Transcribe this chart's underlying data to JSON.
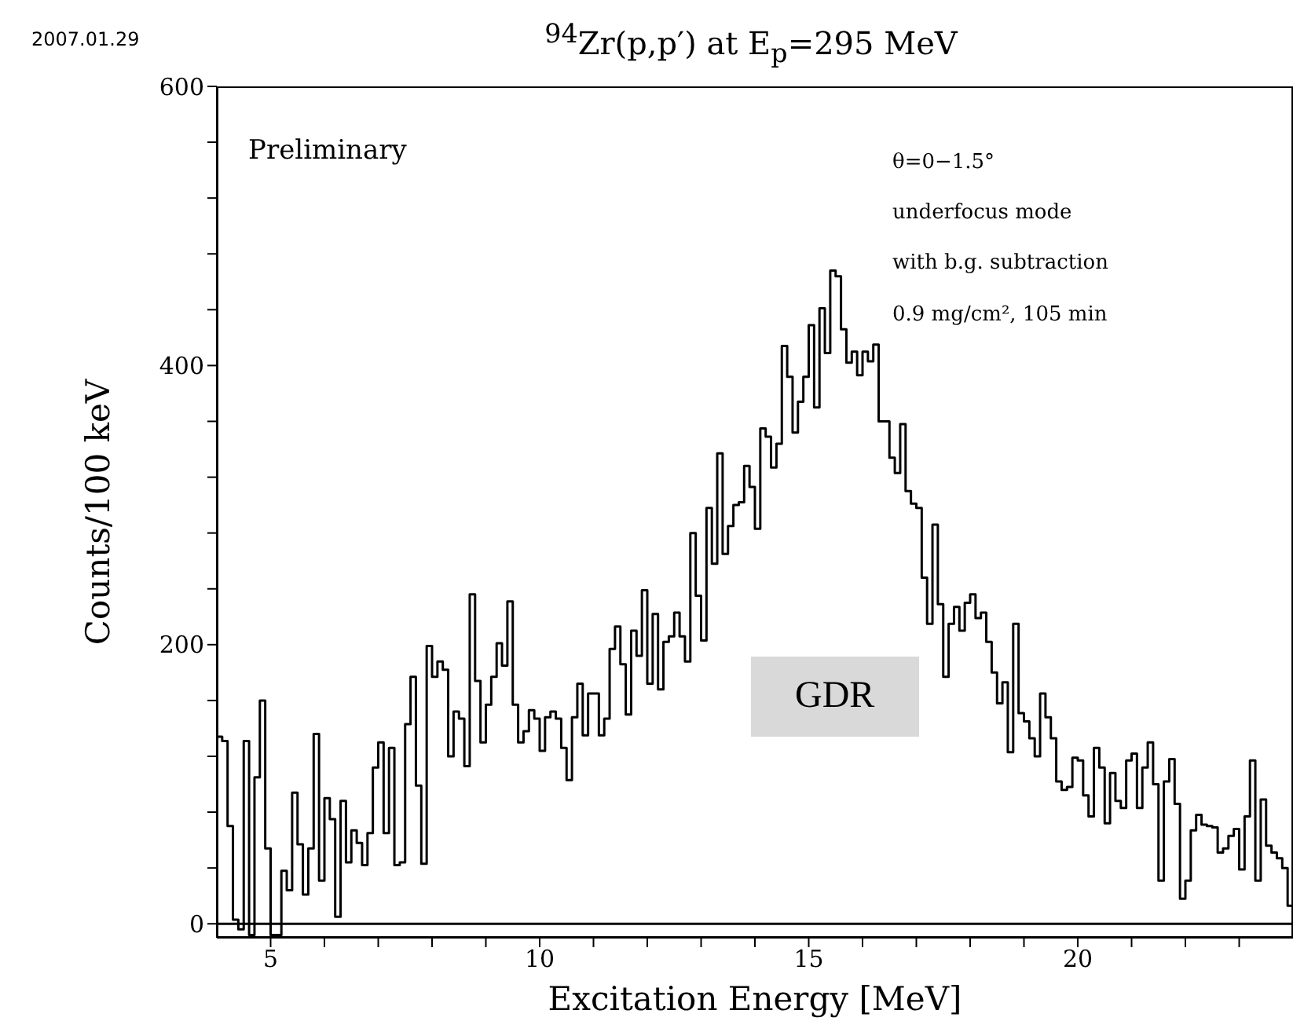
{
  "chart_data": {
    "type": "histogram",
    "title": "$^{94}$Zr(p,p′) at E$_{p}$=295 MeV",
    "xlabel": "Excitation Energy [MeV]",
    "ylabel": "Counts/100 keV",
    "annotations": [
      "2007.01.29",
      "Preliminary",
      "θ=0−1.5°",
      "underfocus mode",
      "with b.g. subtraction",
      "0.9 mg/cm², 105 min",
      "GDR"
    ],
    "color": "#000000",
    "bins": [
      4,
      4.1,
      4.2,
      4.3,
      4.4,
      4.5,
      4.6,
      4.7,
      4.8,
      4.9,
      5,
      5.1,
      5.2,
      5.3,
      5.4,
      5.5,
      5.6,
      5.7,
      5.8,
      5.9,
      6,
      6.1,
      6.2,
      6.3,
      6.4,
      6.5,
      6.6,
      6.7,
      6.8,
      6.9,
      7,
      7.1,
      7.2,
      7.3,
      7.4,
      7.5,
      7.6,
      7.7,
      7.8,
      7.9,
      8,
      8.1,
      8.2,
      8.3,
      8.4,
      8.5,
      8.6,
      8.7,
      8.8,
      8.9,
      9,
      9.1,
      9.2,
      9.3,
      9.4,
      9.5,
      9.6,
      9.7,
      9.8,
      9.9,
      10,
      10.1,
      10.2,
      10.3,
      10.4,
      10.5,
      10.6,
      10.7,
      10.8,
      10.9,
      11,
      11.1,
      11.2,
      11.3,
      11.4,
      11.5,
      11.6,
      11.7,
      11.8,
      11.9,
      12,
      12.1,
      12.2,
      12.3,
      12.4,
      12.5,
      12.6,
      12.7,
      12.8,
      12.9,
      13,
      13.1,
      13.2,
      13.3,
      13.4,
      13.5,
      13.6,
      13.7,
      13.8,
      13.9,
      14,
      14.1,
      14.2,
      14.3,
      14.4,
      14.5,
      14.6,
      14.7,
      14.8,
      14.9,
      15,
      15.1,
      15.2,
      15.3,
      15.4,
      15.5,
      15.6,
      15.7,
      15.8,
      15.9,
      16,
      16.1,
      16.2,
      16.3,
      16.4,
      16.5,
      16.6,
      16.7,
      16.8,
      16.9,
      17,
      17.1,
      17.2,
      17.3,
      17.4,
      17.5,
      17.6,
      17.7,
      17.8,
      17.9,
      18,
      18.1,
      18.2,
      18.3,
      18.4,
      18.5,
      18.6,
      18.7,
      18.8,
      18.9,
      19,
      19.1,
      19.2,
      19.3,
      19.4,
      19.5,
      19.6,
      19.7,
      19.8,
      19.9,
      20,
      20.1,
      20.2,
      20.3,
      20.4,
      20.5,
      20.6,
      20.7,
      20.8,
      20.9,
      21,
      21.1,
      21.2,
      21.3,
      21.4,
      21.5,
      21.6,
      21.7,
      21.8,
      21.9,
      22,
      22.1,
      22.2,
      22.3,
      22.4,
      22.5,
      22.6,
      22.7,
      22.8,
      22.9,
      23,
      23.1,
      23.2,
      23.3,
      23.4,
      23.5,
      23.6,
      23.7,
      23.8,
      23.9,
      24
    ],
    "values": [
      134,
      131,
      70,
      3,
      -4,
      131,
      -8,
      105,
      160,
      54,
      -8,
      -8,
      38,
      24,
      94,
      57,
      21,
      54,
      136,
      31,
      90,
      75,
      5,
      88,
      44,
      67,
      58,
      42,
      65,
      112,
      130,
      65,
      126,
      42,
      44,
      143,
      177,
      99,
      43,
      199,
      177,
      188,
      182,
      120,
      152,
      147,
      113,
      236,
      174,
      130,
      157,
      177,
      201,
      185,
      231,
      157,
      130,
      138,
      153,
      147,
      124,
      148,
      152,
      147,
      126,
      103,
      148,
      172,
      135,
      165,
      165,
      135,
      147,
      197,
      213,
      186,
      150,
      210,
      192,
      239,
      172,
      222,
      168,
      202,
      206,
      223,
      206,
      188,
      280,
      235,
      203,
      298,
      258,
      337,
      265,
      285,
      300,
      302,
      328,
      313,
      283,
      355,
      349,
      327,
      344,
      414,
      392,
      352,
      374,
      392,
      429,
      370,
      441,
      409,
      468,
      464,
      426,
      402,
      410,
      393,
      410,
      403,
      415,
      360,
      360,
      334,
      323,
      358,
      310,
      301,
      298,
      248,
      215,
      286,
      229,
      177,
      215,
      227,
      210,
      230,
      236,
      219,
      223,
      202,
      180,
      158,
      173,
      123,
      215,
      151,
      145,
      133,
      120,
      165,
      148,
      133,
      102,
      96,
      98,
      119,
      117,
      92,
      77,
      126,
      112,
      72,
      108,
      88,
      83,
      117,
      122,
      83,
      112,
      130,
      100,
      31,
      102,
      118,
      86,
      18,
      31,
      67,
      78,
      71,
      70,
      69,
      51,
      54,
      63,
      68,
      39,
      77,
      117,
      31,
      89,
      56,
      51,
      47,
      40,
      13
    ],
    "xlim": [
      4,
      24
    ],
    "xticks": [
      5,
      {
        "value": 6,
        "label": null
      },
      {
        "value": 7,
        "label": null
      },
      {
        "value": 8,
        "label": null
      },
      {
        "value": 9,
        "label": null
      },
      10,
      {
        "value": 11,
        "label": null
      },
      {
        "value": 12,
        "label": null
      },
      {
        "value": 13,
        "label": null
      },
      {
        "value": 14,
        "label": null
      },
      15,
      {
        "value": 16,
        "label": null
      },
      {
        "value": 17,
        "label": null
      },
      {
        "value": 18,
        "label": null
      },
      {
        "value": 19,
        "label": null
      },
      20,
      {
        "value": 21,
        "label": null
      },
      {
        "value": 22,
        "label": null
      },
      {
        "value": 23,
        "label": null
      }
    ],
    "ylim": [
      -10,
      600
    ],
    "yticks": [
      0,
      {
        "value": 40,
        "label": null
      },
      {
        "value": 80,
        "label": null
      },
      {
        "value": 120,
        "label": null
      },
      {
        "value": 160,
        "label": null
      },
      200,
      {
        "value": 240,
        "label": null
      },
      {
        "value": 280,
        "label": null
      },
      {
        "value": 320,
        "label": null
      },
      {
        "value": 360,
        "label": null
      },
      400,
      {
        "value": 440,
        "label": null
      },
      {
        "value": 480,
        "label": null
      },
      {
        "value": 520,
        "label": null
      },
      {
        "value": 560,
        "label": null
      },
      600
    ],
    "ref_lines": [
      {
        "axis": "y",
        "value": 0,
        "color": "#000000"
      }
    ]
  }
}
